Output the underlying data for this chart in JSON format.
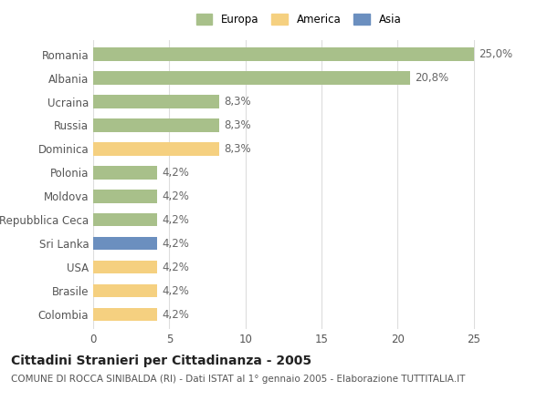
{
  "categories": [
    "Romania",
    "Albania",
    "Ucraina",
    "Russia",
    "Dominica",
    "Polonia",
    "Moldova",
    "Repubblica Ceca",
    "Sri Lanka",
    "USA",
    "Brasile",
    "Colombia"
  ],
  "values": [
    25.0,
    20.8,
    8.3,
    8.3,
    8.3,
    4.2,
    4.2,
    4.2,
    4.2,
    4.2,
    4.2,
    4.2
  ],
  "labels": [
    "25,0%",
    "20,8%",
    "8,3%",
    "8,3%",
    "8,3%",
    "4,2%",
    "4,2%",
    "4,2%",
    "4,2%",
    "4,2%",
    "4,2%",
    "4,2%"
  ],
  "colors": [
    "#a8c08a",
    "#a8c08a",
    "#a8c08a",
    "#a8c08a",
    "#f5d080",
    "#a8c08a",
    "#a8c08a",
    "#a8c08a",
    "#6b8fbf",
    "#f5d080",
    "#f5d080",
    "#f5d080"
  ],
  "legend": [
    {
      "label": "Europa",
      "color": "#a8c08a"
    },
    {
      "label": "America",
      "color": "#f5d080"
    },
    {
      "label": "Asia",
      "color": "#6b8fbf"
    }
  ],
  "xlim": [
    0,
    27
  ],
  "xticks": [
    0,
    5,
    10,
    15,
    20,
    25
  ],
  "title": "Cittadini Stranieri per Cittadinanza - 2005",
  "subtitle": "COMUNE DI ROCCA SINIBALDA (RI) - Dati ISTAT al 1° gennaio 2005 - Elaborazione TUTTITALIA.IT",
  "background_color": "#ffffff",
  "grid_color": "#dddddd",
  "bar_height": 0.55,
  "title_fontsize": 10,
  "subtitle_fontsize": 7.5,
  "label_fontsize": 8.5,
  "tick_fontsize": 8.5
}
